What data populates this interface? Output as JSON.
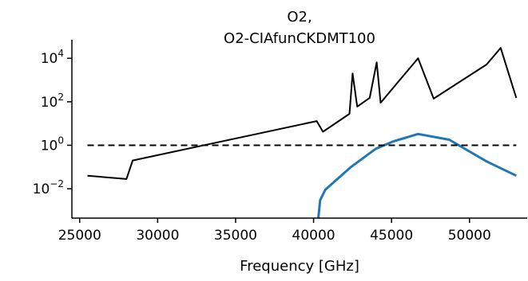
{
  "chart_data": {
    "type": "line",
    "title_lines": [
      "O2,",
      "O2-CIAfunCKDMT100"
    ],
    "xlabel": "Frequency [GHz]",
    "ylabel": "",
    "xlim": [
      24500,
      53700
    ],
    "ylim_log10": [
      -3.35,
      4.85
    ],
    "yscale": "log",
    "x_ticks": [
      25000,
      30000,
      35000,
      40000,
      45000,
      50000
    ],
    "x_tick_labels": [
      "25000",
      "30000",
      "35000",
      "40000",
      "45000",
      "50000"
    ],
    "y_ticks_log10": [
      -2,
      0,
      2,
      4
    ],
    "y_tick_labels": [
      {
        "base": "10",
        "exp": "−2"
      },
      {
        "base": "10",
        "exp": "0"
      },
      {
        "base": "10",
        "exp": "2"
      },
      {
        "base": "10",
        "exp": "4"
      }
    ],
    "series": [
      {
        "color": "#000000",
        "style": "solid",
        "x": [
          25500,
          28000,
          28400,
          40200,
          40600,
          42300,
          42500,
          42800,
          43600,
          44050,
          44300,
          46700,
          47700,
          51100,
          52000,
          53000
        ],
        "y": [
          0.04,
          0.028,
          0.2,
          13,
          4.2,
          28,
          2000,
          60,
          150,
          6500,
          90,
          10000,
          140,
          5200,
          30000,
          150
        ]
      },
      {
        "color": "#1f77b4",
        "style": "solid",
        "x": [
          40300,
          40420,
          40750,
          42400,
          44000,
          45100,
          46700,
          48700,
          51100,
          53000
        ],
        "y": [
          0.0004,
          0.003,
          0.009,
          0.1,
          0.7,
          1.5,
          3.3,
          1.8,
          0.18,
          0.04
        ]
      },
      {
        "color": "#000000",
        "style": "dashed",
        "x": [
          25500,
          53000
        ],
        "y": [
          1,
          1
        ]
      }
    ]
  }
}
